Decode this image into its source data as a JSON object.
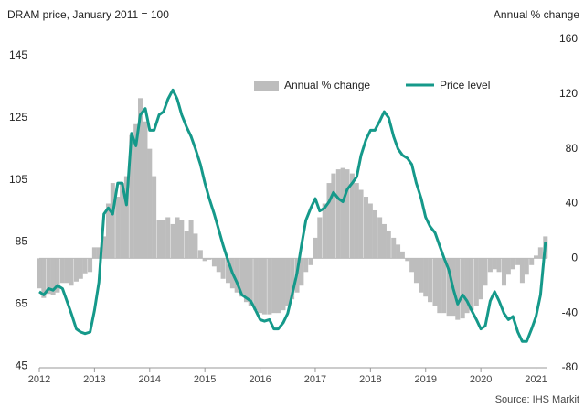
{
  "chart_data": {
    "type": "combo",
    "title": "DRAM price, January 2011 = 100",
    "y2_label": "Annual % change",
    "source": "Source: IHS Markit",
    "xlim": [
      2012,
      2021.19
    ],
    "xticks": [
      2012,
      2013,
      2014,
      2015,
      2016,
      2017,
      2018,
      2019,
      2020,
      2021
    ],
    "ylim": [
      44.5,
      150.3
    ],
    "yticks": [
      45,
      65,
      85,
      105,
      125,
      145
    ],
    "y2lim": [
      -80,
      160
    ],
    "y2ticks": [
      -80,
      -40,
      0,
      40,
      80,
      120,
      160
    ],
    "legend": "top-right",
    "x": [
      2012.0,
      2012.08,
      2012.17,
      2012.25,
      2012.33,
      2012.42,
      2012.5,
      2012.58,
      2012.67,
      2012.75,
      2012.83,
      2012.92,
      2013.0,
      2013.08,
      2013.17,
      2013.25,
      2013.33,
      2013.42,
      2013.5,
      2013.58,
      2013.67,
      2013.75,
      2013.83,
      2013.92,
      2014.0,
      2014.08,
      2014.17,
      2014.25,
      2014.33,
      2014.42,
      2014.5,
      2014.58,
      2014.67,
      2014.75,
      2014.83,
      2014.92,
      2015.0,
      2015.08,
      2015.17,
      2015.25,
      2015.33,
      2015.42,
      2015.5,
      2015.58,
      2015.67,
      2015.75,
      2015.83,
      2015.92,
      2016.0,
      2016.08,
      2016.17,
      2016.25,
      2016.33,
      2016.42,
      2016.5,
      2016.58,
      2016.67,
      2016.75,
      2016.83,
      2016.92,
      2017.0,
      2017.08,
      2017.17,
      2017.25,
      2017.33,
      2017.42,
      2017.5,
      2017.58,
      2017.67,
      2017.75,
      2017.83,
      2017.92,
      2018.0,
      2018.08,
      2018.17,
      2018.25,
      2018.33,
      2018.42,
      2018.5,
      2018.58,
      2018.67,
      2018.75,
      2018.83,
      2018.92,
      2019.0,
      2019.08,
      2019.17,
      2019.25,
      2019.33,
      2019.42,
      2019.5,
      2019.58,
      2019.67,
      2019.75,
      2019.83,
      2019.92,
      2020.0,
      2020.08,
      2020.17,
      2020.25,
      2020.33,
      2020.42,
      2020.5,
      2020.58,
      2020.67,
      2020.75,
      2020.83,
      2020.92,
      2021.0,
      2021.08,
      2021.17
    ],
    "series": [
      {
        "name": "Annual % change",
        "type": "bar",
        "axis": "y2",
        "color": "#bdbdbd",
        "values": [
          -22,
          -29,
          -26,
          -27,
          -25,
          -18,
          -18,
          -20,
          -17,
          -15,
          -11,
          -10,
          8,
          8,
          16,
          40,
          55,
          45,
          55,
          60,
          90,
          98,
          117,
          100,
          80,
          60,
          28,
          28,
          30,
          25,
          30,
          28,
          20,
          28,
          18,
          6,
          -2,
          -1,
          -6,
          -10,
          -15,
          -18,
          -22,
          -25,
          -28,
          -32,
          -35,
          -38,
          -40,
          -41,
          -41,
          -40,
          -40,
          -38,
          -35,
          -30,
          -25,
          -20,
          -10,
          -5,
          15,
          30,
          40,
          55,
          62,
          65,
          66,
          65,
          62,
          55,
          50,
          45,
          40,
          35,
          30,
          25,
          20,
          15,
          10,
          5,
          -2,
          -10,
          -18,
          -25,
          -28,
          -32,
          -35,
          -40,
          -40,
          -42,
          -42,
          -45,
          -44,
          -40,
          -38,
          -35,
          -30,
          -20,
          -10,
          -8,
          -10,
          -20,
          -12,
          -8,
          -5,
          -18,
          -12,
          -5,
          2,
          8,
          16
        ]
      },
      {
        "name": "Price level",
        "type": "line",
        "color": "#15998a",
        "values": [
          69,
          68,
          70,
          69.5,
          71,
          70,
          66,
          62,
          57,
          56,
          55.5,
          56,
          63,
          72,
          94,
          96,
          94,
          104,
          104,
          97,
          120,
          116,
          126,
          128,
          121,
          121,
          126,
          127,
          131,
          134,
          131,
          126,
          122,
          119,
          115,
          110,
          104,
          99,
          94,
          89,
          84,
          79,
          75,
          72,
          68,
          67,
          66,
          63,
          60,
          59.5,
          60,
          57,
          57,
          59,
          62,
          68,
          75,
          84,
          92,
          96,
          99,
          95,
          96,
          98,
          101,
          99,
          98,
          102,
          104,
          106,
          113,
          118,
          121,
          121,
          124,
          127,
          125,
          119,
          115,
          113,
          112,
          110,
          104,
          99,
          93,
          90,
          88,
          84,
          80,
          76,
          70,
          65,
          68,
          66,
          63,
          60,
          57,
          58,
          66,
          69,
          66,
          62,
          60,
          61,
          56,
          53,
          53,
          57,
          61,
          68,
          85
        ]
      }
    ]
  }
}
